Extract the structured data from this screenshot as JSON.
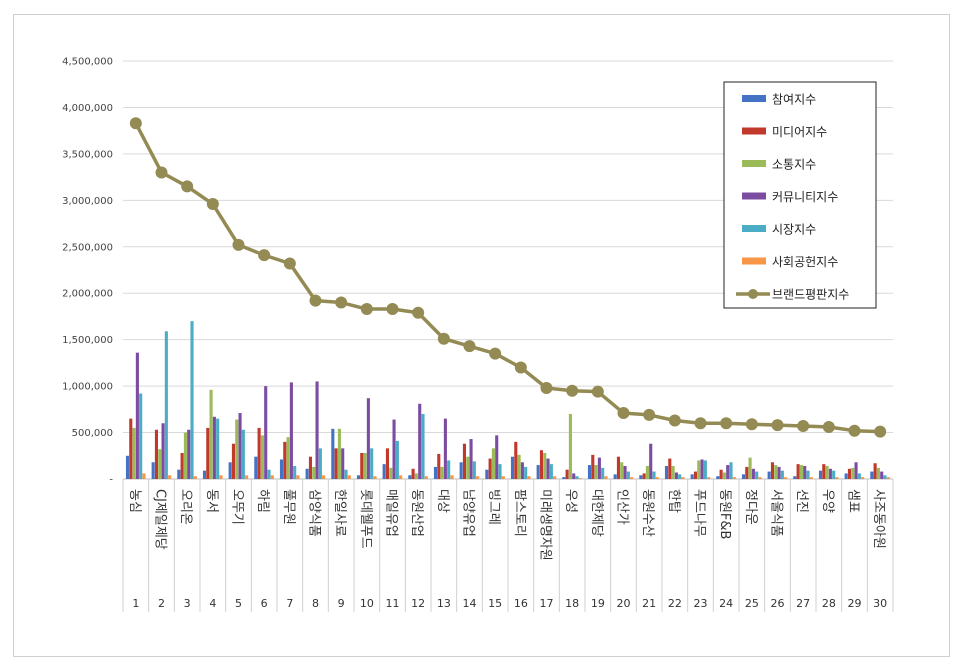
{
  "chart_data": {
    "type": "bar",
    "ylim": [
      0,
      4500000
    ],
    "y_ticks": [
      "-",
      "500,000",
      "1,000,000",
      "1,500,000",
      "2,000,000",
      "2,500,000",
      "3,000,000",
      "3,500,000",
      "4,000,000",
      "4,500,000"
    ],
    "ranks": [
      "1",
      "2",
      "3",
      "4",
      "5",
      "6",
      "7",
      "8",
      "9",
      "10",
      "11",
      "12",
      "13",
      "14",
      "15",
      "16",
      "17",
      "18",
      "19",
      "20",
      "21",
      "22",
      "23",
      "24",
      "25",
      "26",
      "27",
      "28",
      "29",
      "30"
    ],
    "categories": [
      "농심",
      "CJ제일제당",
      "오리온",
      "동서",
      "오뚜기",
      "하림",
      "풀무원",
      "삼양식품",
      "한일사료",
      "롯데웰푸드",
      "매일유업",
      "동원산업",
      "대상",
      "남양유업",
      "빙그레",
      "팜스토리",
      "미래생명자원",
      "우성",
      "대한제당",
      "인산가",
      "동원수산",
      "한탑",
      "푸드나무",
      "동원F&B",
      "정다운",
      "서울식품",
      "선진",
      "우양",
      "샘표",
      "사조동아원"
    ],
    "legend_position": "top-right",
    "grid": true,
    "series": [
      {
        "name": "참여지수",
        "color": "#4472C4",
        "kind": "bar",
        "values": [
          250000,
          180000,
          100000,
          90000,
          180000,
          240000,
          210000,
          110000,
          540000,
          40000,
          160000,
          40000,
          130000,
          180000,
          100000,
          240000,
          150000,
          20000,
          150000,
          50000,
          40000,
          140000,
          50000,
          30000,
          50000,
          80000,
          30000,
          90000,
          60000,
          80000
        ]
      },
      {
        "name": "미디어지수",
        "color": "#C0392B",
        "kind": "bar",
        "values": [
          650000,
          530000,
          280000,
          550000,
          380000,
          550000,
          400000,
          240000,
          330000,
          280000,
          330000,
          110000,
          270000,
          380000,
          220000,
          400000,
          310000,
          100000,
          260000,
          240000,
          60000,
          220000,
          80000,
          100000,
          130000,
          180000,
          160000,
          160000,
          110000,
          170000
        ]
      },
      {
        "name": "소통지수",
        "color": "#9BBB59",
        "kind": "bar",
        "values": [
          550000,
          320000,
          500000,
          960000,
          640000,
          470000,
          450000,
          130000,
          540000,
          280000,
          120000,
          60000,
          130000,
          240000,
          330000,
          260000,
          280000,
          700000,
          150000,
          180000,
          140000,
          140000,
          200000,
          70000,
          230000,
          150000,
          150000,
          140000,
          120000,
          120000
        ]
      },
      {
        "name": "커뮤니티지수",
        "color": "#7B4CA0",
        "kind": "bar",
        "values": [
          1360000,
          600000,
          530000,
          670000,
          710000,
          1000000,
          1040000,
          1050000,
          330000,
          870000,
          640000,
          810000,
          650000,
          430000,
          470000,
          180000,
          220000,
          60000,
          230000,
          140000,
          380000,
          70000,
          210000,
          150000,
          110000,
          130000,
          140000,
          110000,
          180000,
          80000
        ]
      },
      {
        "name": "시장지수",
        "color": "#4BACC6",
        "kind": "bar",
        "values": [
          920000,
          1590000,
          1700000,
          650000,
          530000,
          100000,
          140000,
          330000,
          100000,
          330000,
          410000,
          700000,
          200000,
          190000,
          160000,
          130000,
          160000,
          30000,
          120000,
          80000,
          80000,
          50000,
          200000,
          180000,
          80000,
          90000,
          90000,
          90000,
          60000,
          40000
        ]
      },
      {
        "name": "사회공헌지수",
        "color": "#F79646",
        "kind": "bar",
        "values": [
          60000,
          40000,
          30000,
          40000,
          40000,
          40000,
          40000,
          40000,
          40000,
          30000,
          40000,
          30000,
          40000,
          30000,
          30000,
          30000,
          30000,
          10000,
          30000,
          20000,
          20000,
          20000,
          20000,
          20000,
          20000,
          20000,
          20000,
          20000,
          20000,
          20000
        ]
      },
      {
        "name": "브랜드평판지수",
        "color": "#948A54",
        "kind": "line",
        "values": [
          3830000,
          3300000,
          3150000,
          2960000,
          2520000,
          2410000,
          2320000,
          1920000,
          1900000,
          1830000,
          1830000,
          1790000,
          1510000,
          1430000,
          1350000,
          1200000,
          980000,
          950000,
          940000,
          710000,
          690000,
          630000,
          600000,
          600000,
          590000,
          580000,
          570000,
          560000,
          520000,
          510000
        ]
      }
    ]
  }
}
